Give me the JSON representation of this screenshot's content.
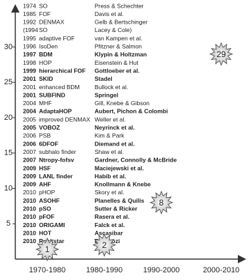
{
  "chart_data": {
    "type": "starburst",
    "categories": [
      "1970-1980",
      "1980-1990",
      "1990-2000",
      "2000-2010"
    ],
    "values": [
      1,
      2,
      8,
      29
    ],
    "ylim": [
      0,
      33
    ],
    "yticks": [
      5,
      10,
      15,
      20,
      25,
      30
    ],
    "entries": [
      {
        "year": "1974",
        "name": "SO",
        "author": "Press & Schechter",
        "bold": false
      },
      {
        "year": "1985",
        "name": "FOF",
        "author": "Davis et al.",
        "bold": false
      },
      {
        "year": "1992",
        "name": "DENMAX",
        "author": "Gelb & Bertschinger",
        "bold": false
      },
      {
        "year": "(1994",
        "name": "SO",
        "author": "Lacey & Cole)",
        "bold": false
      },
      {
        "year": "1995",
        "name": "adaptive FOF",
        "author": "van Kampen et al.",
        "bold": false
      },
      {
        "year": "1996",
        "name": "IsoDen",
        "author": "Pfitzner & Salmon",
        "bold": false
      },
      {
        "year": "1997",
        "name": "BDM",
        "author": "Klypin & Holtzman",
        "bold": true
      },
      {
        "year": "1998",
        "name": "HOP",
        "author": "Eisenstein & Hut",
        "bold": false
      },
      {
        "year": "1999",
        "name": "hierarchical FOF",
        "author": "Gottloeber et al.",
        "bold": true
      },
      {
        "year": "2001",
        "name": "SKID",
        "author": "Stadel",
        "bold": true
      },
      {
        "year": "2001",
        "name": "enhanced BDM",
        "author": "Bullock et al.",
        "bold": false
      },
      {
        "year": "2001",
        "name": "SUBFIND",
        "author": "Springel",
        "bold": true
      },
      {
        "year": "2004",
        "name": "MHF",
        "author": "Gill, Knebe & Gibson",
        "bold": false
      },
      {
        "year": "2004",
        "name": "AdaptaHOP",
        "author": "Aubert, Pichon & Colombi",
        "bold": true
      },
      {
        "year": "2005",
        "name": "improved DENMAX",
        "author": "Weller et al.",
        "bold": false
      },
      {
        "year": "2005",
        "name": "VOBOZ",
        "author": "Neyrinck et al.",
        "bold": true
      },
      {
        "year": "2006",
        "name": "PSB",
        "author": "Kim & Park",
        "bold": false
      },
      {
        "year": "2006",
        "name": "6DFOF",
        "author": "Diemand et al.",
        "bold": true
      },
      {
        "year": "2007",
        "name": "subhalo finder",
        "author": "Shaw et al.",
        "bold": false
      },
      {
        "year": "2007",
        "name": "Ntropy-fofsv",
        "author": "Gardner, Connolly & McBride",
        "bold": true
      },
      {
        "year": "2009",
        "name": "HSF",
        "author": "Maciejewski et al.",
        "bold": true
      },
      {
        "year": "2009",
        "name": "LANL finder",
        "author": "Habib et al.",
        "bold": true
      },
      {
        "year": "2009",
        "name": "AHF",
        "author": "Knollmann & Knebe",
        "bold": true
      },
      {
        "year": "2010",
        "name": "pHOP",
        "author": "Skory et al.",
        "bold": false
      },
      {
        "year": "2010",
        "name": "ASOHF",
        "author": "Planelles & Quilis",
        "bold": true
      },
      {
        "year": "2010",
        "name": "pSO",
        "author": "Sutter & Ricker",
        "bold": true
      },
      {
        "year": "2010",
        "name": "pFOF",
        "author": "Rasera et al.",
        "bold": true
      },
      {
        "year": "2010",
        "name": "ORIGAMI",
        "author": "Falck et al.",
        "bold": true
      },
      {
        "year": "2010",
        "name": "HOT",
        "author": "Ascasibar",
        "bold": true
      },
      {
        "year": "2010",
        "name": "Rockstar",
        "author": "Behroozi",
        "bold": true
      }
    ]
  }
}
